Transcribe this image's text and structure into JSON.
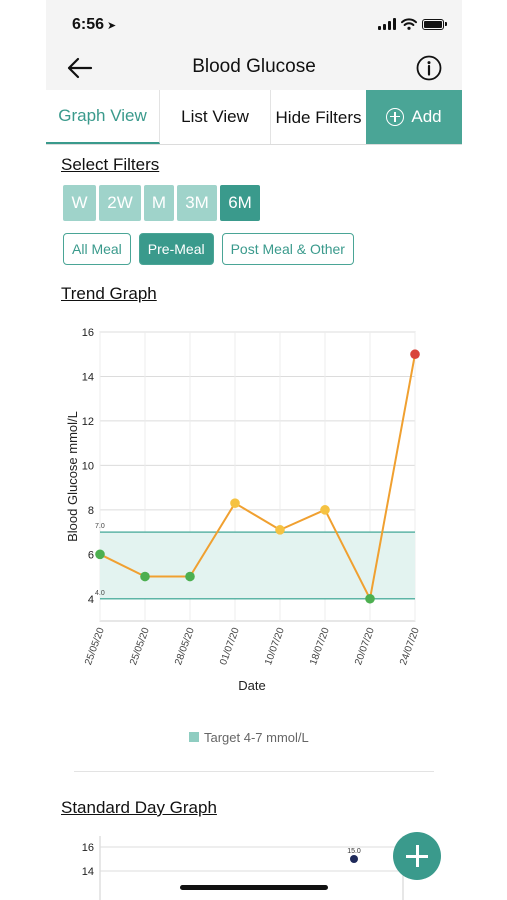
{
  "status_bar": {
    "time": "6:56"
  },
  "nav": {
    "title": "Blood Glucose"
  },
  "tabs": {
    "graph": "Graph View",
    "list": "List View",
    "filters": "Hide Filters",
    "add": "Add"
  },
  "filters": {
    "title": "Select Filters",
    "ranges": [
      {
        "label": "W",
        "active": false
      },
      {
        "label": "2W",
        "active": false
      },
      {
        "label": "M",
        "active": false
      },
      {
        "label": "3M",
        "active": false
      },
      {
        "label": "6M",
        "active": true
      }
    ],
    "meals": [
      {
        "label": "All Meal",
        "active": false
      },
      {
        "label": "Pre-Meal",
        "active": true
      },
      {
        "label": "Post Meal & Other",
        "active": false
      }
    ]
  },
  "trend": {
    "title": "Trend Graph",
    "legend": "Target 4-7 mmol/L"
  },
  "standard_day": {
    "title": "Standard Day Graph"
  },
  "colors": {
    "accent": "#3a9a8c",
    "line": "#f0a030",
    "in_range": "#4caf50",
    "above_range": "#f5c242",
    "high": "#d9443a",
    "band": "#e3f3f0",
    "band_edge": "#5db5a6"
  },
  "chart_data": [
    {
      "type": "line",
      "title": "",
      "xlabel": "Date",
      "ylabel": "Blood Glucose mmol/L",
      "x": [
        "25/05/20",
        "25/05/20",
        "28/05/20",
        "01/07/20",
        "10/07/20",
        "18/07/20",
        "20/07/20",
        "24/07/20"
      ],
      "series": [
        {
          "values": [
            6.0,
            5.0,
            5.0,
            8.3,
            7.1,
            8.0,
            4.0,
            15.0
          ]
        }
      ],
      "ylim": [
        3,
        16
      ],
      "yticks": [
        4,
        6,
        8,
        10,
        12,
        14,
        16
      ],
      "target_band": {
        "low": 4.0,
        "high": 7.0,
        "low_label": "4.0",
        "high_label": "7.0",
        "legend": "Target 4-7 mmol/L"
      },
      "grid": true,
      "legend_position": "bottom"
    },
    {
      "type": "scatter",
      "title": "",
      "yticks": [
        14,
        16
      ],
      "points": [
        {
          "value": 15.0,
          "label": "15.0"
        }
      ],
      "ylim": [
        13,
        17
      ],
      "grid": true
    }
  ]
}
